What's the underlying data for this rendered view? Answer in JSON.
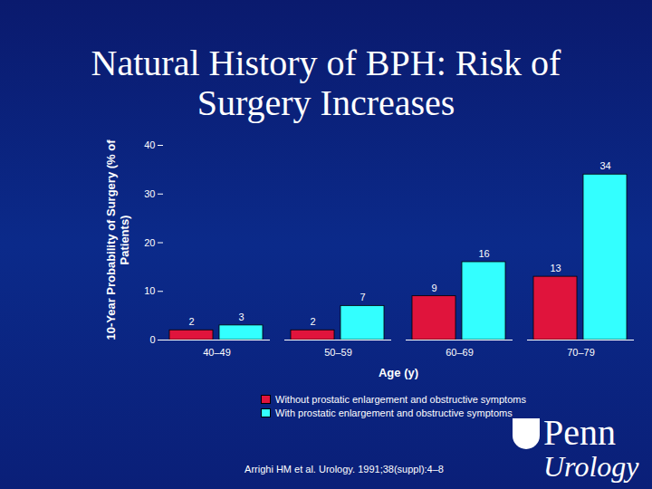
{
  "chart_data": {
    "type": "bar",
    "title": "Natural History of BPH: Risk of Surgery Increases",
    "y_label": "10-Year Probability of Surgery (% of Patients)",
    "x_label": "Age (y)",
    "categories": [
      "40–49",
      "50–59",
      "60–69",
      "70–79"
    ],
    "series": [
      {
        "name": "Without prostatic enlargement and obstructive symptoms",
        "color": "#e0143c",
        "values": [
          2,
          2,
          9,
          13
        ]
      },
      {
        "name": "With prostatic enlargement and obstructive symptoms",
        "color": "#33ffff",
        "values": [
          3,
          7,
          16,
          34
        ]
      }
    ],
    "ylim": [
      0,
      40
    ],
    "yticks": [
      0,
      10,
      20,
      30,
      40
    ],
    "grid": false,
    "data_labels": true,
    "legend": "bottom",
    "annotations": [
      "Arrighi HM et al. Urology. 1991;38(suppl):4–8",
      "Penn",
      "Urology"
    ]
  }
}
